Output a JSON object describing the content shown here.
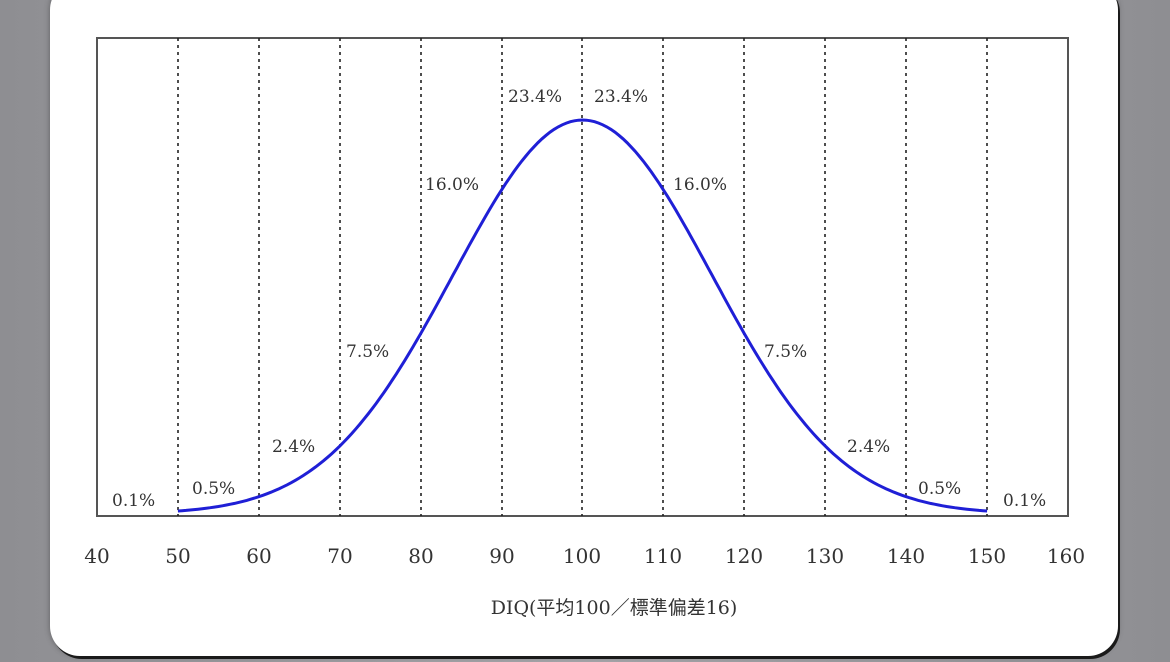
{
  "chart_data": {
    "type": "line",
    "title": "",
    "xlabel": "DIQ(平均100／標準偏差16)",
    "ylabel": "",
    "xlim": [
      40,
      160
    ],
    "x_ticks": [
      40,
      50,
      60,
      70,
      80,
      90,
      100,
      110,
      120,
      130,
      140,
      150,
      160
    ],
    "x_tick_labels": [
      "40",
      "50",
      "60",
      "70",
      "80",
      "90",
      "100",
      "110",
      "120",
      "130",
      "140",
      "150",
      "160"
    ],
    "grid": {
      "vertical_dashed_at": [
        50,
        60,
        70,
        80,
        90,
        100,
        110,
        120,
        130,
        140,
        150
      ]
    },
    "series": [
      {
        "name": "Normal distribution (mean 100, SD 16)",
        "mean": 100,
        "sd": 16,
        "x_range": [
          50,
          150
        ],
        "color": "#1f1fd6"
      }
    ],
    "annotations": [
      {
        "interval": "<50",
        "label": "0.1%"
      },
      {
        "interval": "50-60",
        "label": "0.5%"
      },
      {
        "interval": "60-70",
        "label": "2.4%"
      },
      {
        "interval": "70-80",
        "label": "7.5%"
      },
      {
        "interval": "80-90",
        "label": "16.0%"
      },
      {
        "interval": "90-100",
        "label": "23.4%"
      },
      {
        "interval": "100-110",
        "label": "23.4%"
      },
      {
        "interval": "110-120",
        "label": "16.0%"
      },
      {
        "interval": "120-130",
        "label": "7.5%"
      },
      {
        "interval": "130-140",
        "label": "2.4%"
      },
      {
        "interval": "140-150",
        "label": "0.5%"
      },
      {
        "interval": ">150",
        "label": "0.1%"
      }
    ]
  },
  "labels": {
    "xlabel": "DIQ(平均100／標準偏差16)",
    "ticks": [
      "40",
      "50",
      "60",
      "70",
      "80",
      "90",
      "100",
      "110",
      "120",
      "130",
      "140",
      "150",
      "160"
    ],
    "annot": [
      "0.1%",
      "0.5%",
      "2.4%",
      "7.5%",
      "16.0%",
      "23.4%",
      "23.4%",
      "16.0%",
      "7.5%",
      "2.4%",
      "0.5%",
      "0.1%"
    ]
  }
}
